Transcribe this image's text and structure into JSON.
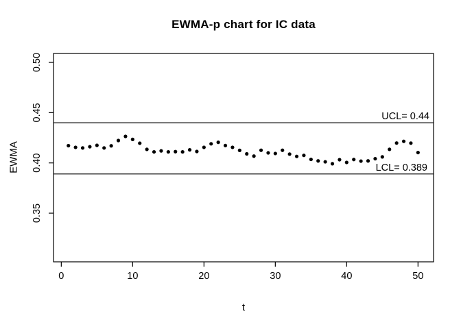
{
  "chart_data": {
    "type": "scatter",
    "title": "EWMA-p chart for IC data",
    "xlabel": "t",
    "ylabel": "EWMA",
    "marker": "filled-circle",
    "point_color": "#000000",
    "ink_color": "#000000",
    "background_color": "#ffffff",
    "grid": false,
    "legend": null,
    "xlim": [
      -1.09,
      52.18
    ],
    "ylim": [
      0.3016,
      0.5089
    ],
    "x_ticks": [
      {
        "value": 0,
        "label": "0"
      },
      {
        "value": 10,
        "label": "10"
      },
      {
        "value": 20,
        "label": "20"
      },
      {
        "value": 30,
        "label": "30"
      },
      {
        "value": 40,
        "label": "40"
      },
      {
        "value": 50,
        "label": "50"
      }
    ],
    "y_ticks": [
      {
        "value": 0.35,
        "label": "0.35"
      },
      {
        "value": 0.4,
        "label": "0.40"
      },
      {
        "value": 0.45,
        "label": "0.45"
      },
      {
        "value": 0.5,
        "label": "0.50"
      }
    ],
    "ucl": {
      "value": 0.44,
      "label": "UCL= 0.44"
    },
    "lcl": {
      "value": 0.389,
      "label": "LCL= 0.389"
    },
    "x": [
      1,
      2,
      3,
      4,
      5,
      6,
      7,
      8,
      9,
      10,
      11,
      12,
      13,
      14,
      15,
      16,
      17,
      18,
      19,
      20,
      21,
      22,
      23,
      24,
      25,
      26,
      27,
      28,
      29,
      30,
      31,
      32,
      33,
      34,
      35,
      36,
      37,
      38,
      39,
      40,
      41,
      42,
      43,
      44,
      45,
      46,
      47,
      48,
      49,
      50
    ],
    "y": [
      0.4172,
      0.4155,
      0.4149,
      0.4161,
      0.4175,
      0.4149,
      0.417,
      0.4223,
      0.4264,
      0.4234,
      0.4196,
      0.4135,
      0.411,
      0.412,
      0.411,
      0.4112,
      0.411,
      0.413,
      0.4114,
      0.4155,
      0.419,
      0.4205,
      0.4173,
      0.4155,
      0.4125,
      0.409,
      0.4068,
      0.4126,
      0.41,
      0.4094,
      0.4126,
      0.4088,
      0.4065,
      0.4075,
      0.4035,
      0.402,
      0.4011,
      0.3992,
      0.4032,
      0.4005,
      0.4034,
      0.4018,
      0.402,
      0.4042,
      0.406,
      0.4135,
      0.4198,
      0.4215,
      0.4197,
      0.4103
    ]
  }
}
